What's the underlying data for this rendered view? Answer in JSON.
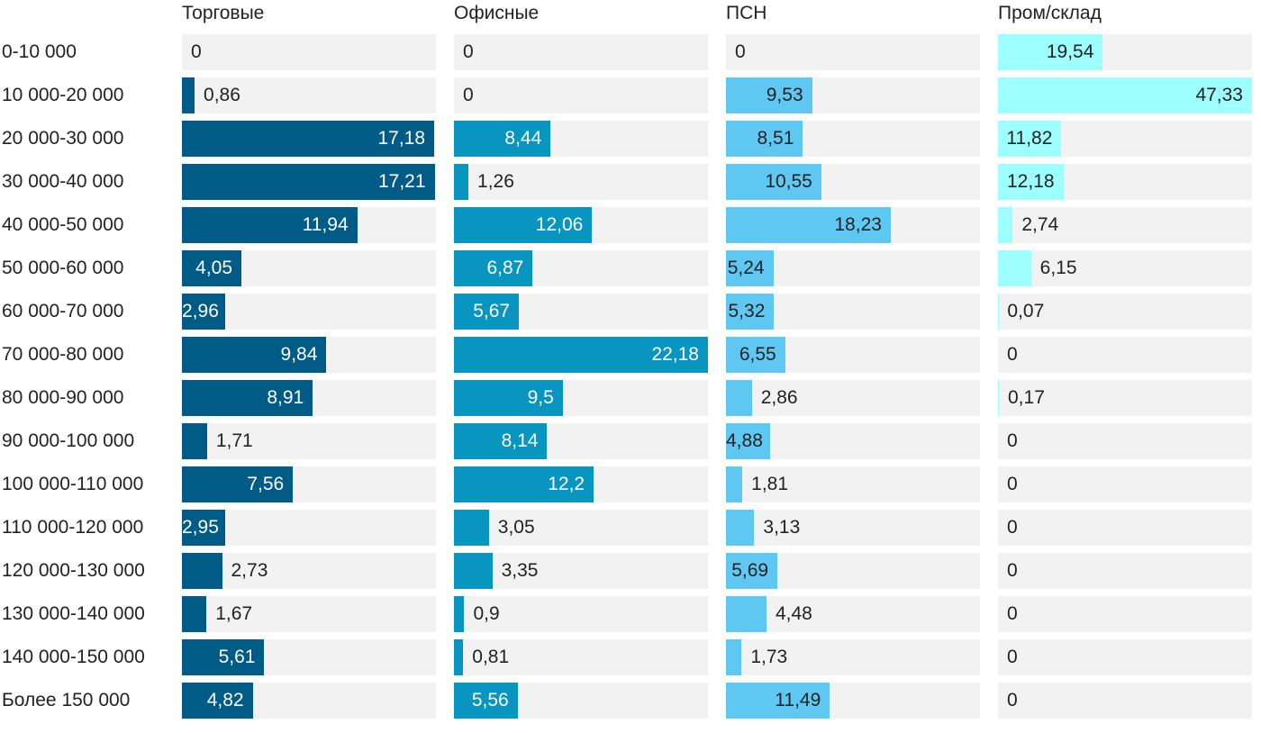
{
  "chart_data": {
    "type": "bar",
    "orientation": "horizontal",
    "layout": "small-multiples",
    "categories": [
      "0-10 000",
      "10 000-20 000",
      "20 000-30 000",
      "30 000-40 000",
      "40 000-50 000",
      "50 000-60 000",
      "60 000-70 000",
      "70 000-80 000",
      "80 000-90 000",
      "90 000-100 000",
      "100 000-110 000",
      "110 000-120 000",
      "120 000-130 000",
      "130 000-140 000",
      "140 000-150 000",
      "Более 150 000"
    ],
    "series": [
      {
        "name": "Торговые",
        "color": "#005b86",
        "label_color": "#ffffff",
        "xlim": [
          0,
          17.3
        ],
        "values": [
          0,
          0.86,
          17.18,
          17.21,
          11.94,
          4.05,
          2.96,
          9.84,
          8.91,
          1.71,
          7.56,
          2.95,
          2.73,
          1.67,
          5.61,
          4.82
        ],
        "labels": [
          "0",
          "0,86",
          "17,18",
          "17,21",
          "11,94",
          "4,05",
          "2,96",
          "9,84",
          "8,91",
          "1,71",
          "7,56",
          "2,95",
          "2,73",
          "1,67",
          "5,61",
          "4,82"
        ]
      },
      {
        "name": "Офисные",
        "color": "#0896c0",
        "label_color": "#ffffff",
        "xlim": [
          0,
          22.18
        ],
        "values": [
          0,
          0,
          8.44,
          1.26,
          12.06,
          6.87,
          5.67,
          22.18,
          9.5,
          8.14,
          12.2,
          3.05,
          3.35,
          0.9,
          0.81,
          5.56
        ],
        "labels": [
          "0",
          "0",
          "8,44",
          "1,26",
          "12,06",
          "6,87",
          "5,67",
          "22,18",
          "9,5",
          "8,14",
          "12,2",
          "3,05",
          "3,35",
          "0,9",
          "0,81",
          "5,56"
        ]
      },
      {
        "name": "ПСН",
        "color": "#5ec7f2",
        "label_color": "#222222",
        "xlim": [
          0,
          28.1
        ],
        "values": [
          0,
          9.53,
          8.51,
          10.55,
          18.23,
          5.24,
          5.32,
          6.55,
          2.86,
          4.88,
          1.81,
          3.13,
          5.69,
          4.48,
          1.73,
          11.49
        ],
        "labels": [
          "0",
          "9,53",
          "8,51",
          "10,55",
          "18,23",
          "5,24",
          "5,32",
          "6,55",
          "2,86",
          "4,88",
          "1,81",
          "3,13",
          "5,69",
          "4,48",
          "1,73",
          "11,49"
        ]
      },
      {
        "name": "Пром/склад",
        "color": "#9effff",
        "label_color": "#222222",
        "xlim": [
          0,
          47.33
        ],
        "values": [
          19.54,
          47.33,
          11.82,
          12.18,
          2.74,
          6.15,
          0.07,
          0,
          0.17,
          0,
          0,
          0,
          0,
          0,
          0,
          0
        ],
        "labels": [
          "19,54",
          "47,33",
          "11,82",
          "12,18",
          "2,74",
          "6,15",
          "0,07",
          "0",
          "0,17",
          "0",
          "0",
          "0",
          "0",
          "0",
          "0",
          "0"
        ]
      }
    ],
    "title": "",
    "xlabel": "",
    "ylabel": "",
    "grid": false,
    "legend": "none"
  }
}
